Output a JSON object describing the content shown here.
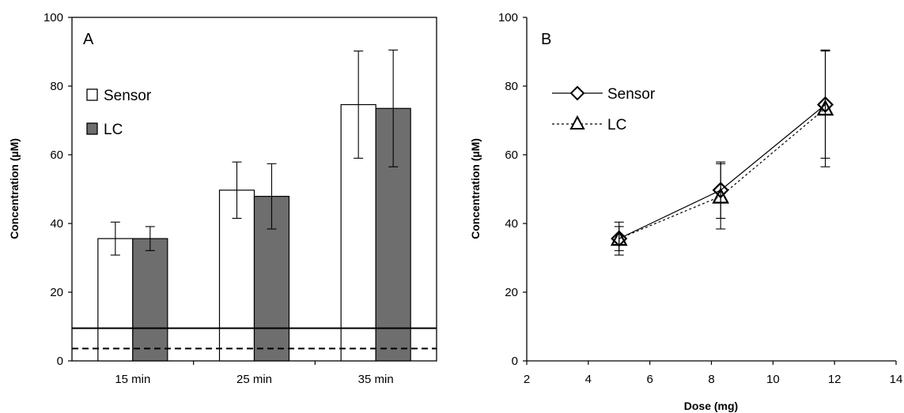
{
  "chart_data": [
    {
      "panel": "A",
      "type": "bar",
      "panel_label": "A",
      "categories": [
        "15 min",
        "25 min",
        "35 min"
      ],
      "series": [
        {
          "name": "Sensor",
          "values": [
            35.6,
            49.7,
            74.6
          ],
          "error": [
            4.8,
            8.2,
            15.6
          ],
          "color": "#ffffff"
        },
        {
          "name": "LC",
          "values": [
            35.6,
            47.9,
            73.5
          ],
          "error": [
            3.5,
            9.5,
            17.0
          ],
          "color": "#6e6e6e"
        }
      ],
      "reference_lines": [
        {
          "y": 9.5,
          "style": "solid"
        },
        {
          "y": 3.6,
          "style": "dashed"
        }
      ],
      "xlabel": "",
      "ylabel": "Concentration (µM)",
      "ylim": [
        0,
        100
      ],
      "yticks": [
        0,
        20,
        40,
        60,
        80,
        100
      ],
      "legend_position": "top-left",
      "grid": false
    },
    {
      "panel": "B",
      "type": "line",
      "panel_label": "B",
      "series": [
        {
          "name": "Sensor",
          "marker": "diamond",
          "line": "solid",
          "x": [
            5.0,
            8.3,
            11.7
          ],
          "y": [
            35.6,
            49.7,
            74.6
          ],
          "error": [
            4.8,
            8.2,
            15.6
          ]
        },
        {
          "name": "LC",
          "marker": "triangle",
          "line": "dashed",
          "x": [
            5.0,
            8.3,
            11.7
          ],
          "y": [
            35.6,
            47.9,
            73.5
          ],
          "error": [
            3.5,
            9.5,
            17.0
          ]
        }
      ],
      "xlabel": "Dose (mg)",
      "ylabel": "Concentration (µM)",
      "xlim": [
        2,
        14
      ],
      "xticks": [
        2,
        4,
        6,
        8,
        10,
        12,
        14
      ],
      "ylim": [
        0,
        100
      ],
      "yticks": [
        0,
        20,
        40,
        60,
        80,
        100
      ],
      "legend_position": "top-left",
      "grid": false
    }
  ]
}
